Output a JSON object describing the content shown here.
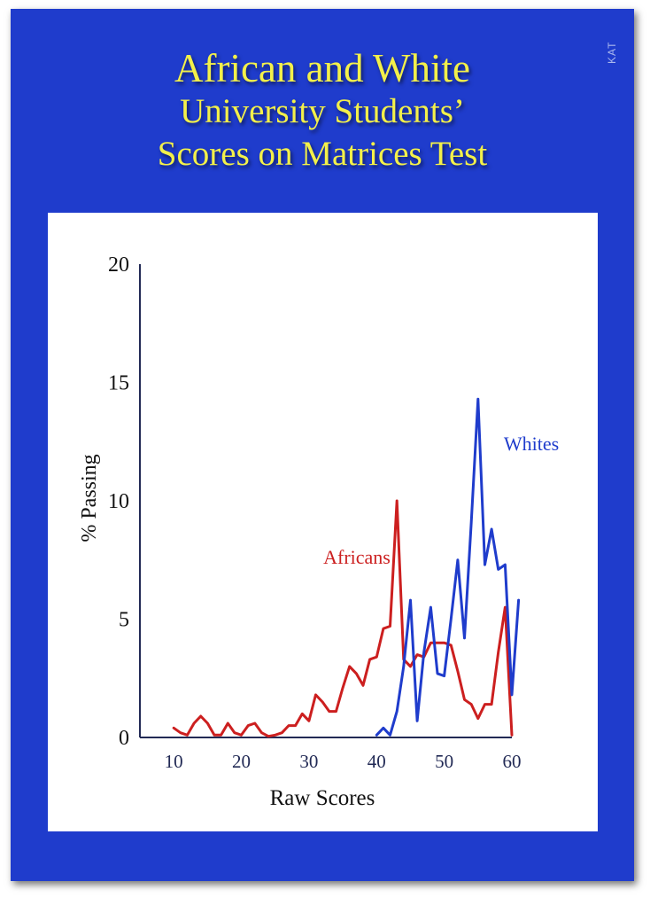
{
  "title": {
    "line1": "African and White",
    "line2": "University Students’",
    "line3": "Scores on Matrices Test"
  },
  "watermark": "KAT",
  "colors": {
    "background": "#1f3ccc",
    "title": "#f3f04a",
    "africans": "#cc1f1f",
    "whites": "#1f3ccc",
    "axis": "#222a55"
  },
  "chart_data": {
    "type": "line",
    "xlabel": "Raw Scores",
    "ylabel": "% Passing",
    "xlim": [
      5,
      60
    ],
    "ylim": [
      0,
      20
    ],
    "xticks": [
      10,
      20,
      30,
      40,
      50,
      60
    ],
    "yticks": [
      0,
      5,
      10,
      15,
      20
    ],
    "grid": false,
    "series": [
      {
        "name": "Africans",
        "color": "#cc1f1f",
        "x": [
          10,
          11,
          12,
          13,
          14,
          15,
          16,
          17,
          18,
          19,
          20,
          21,
          22,
          23,
          24,
          25,
          26,
          27,
          28,
          29,
          30,
          31,
          32,
          33,
          34,
          35,
          36,
          37,
          38,
          39,
          40,
          41,
          42,
          43,
          44,
          45,
          46,
          47,
          48,
          49,
          50,
          51,
          52,
          53,
          54,
          55,
          56,
          57,
          58,
          59,
          60
        ],
        "y": [
          0.4,
          0.2,
          0.1,
          0.6,
          0.9,
          0.6,
          0.1,
          0.1,
          0.6,
          0.2,
          0.1,
          0.5,
          0.6,
          0.2,
          0.05,
          0.1,
          0.2,
          0.5,
          0.5,
          1.0,
          0.7,
          1.8,
          1.5,
          1.1,
          1.1,
          2.1,
          3.0,
          2.7,
          2.2,
          3.3,
          3.4,
          4.6,
          4.7,
          10.0,
          3.3,
          3.0,
          3.5,
          3.4,
          4.0,
          4.0,
          4.0,
          3.9,
          2.8,
          1.6,
          1.4,
          0.8,
          1.4,
          1.4,
          3.6,
          5.5,
          0.1
        ]
      },
      {
        "name": "Whites",
        "color": "#1f3ccc",
        "x": [
          40,
          41,
          42,
          43,
          44,
          45,
          46,
          47,
          48,
          49,
          50,
          51,
          52,
          53,
          54,
          55,
          56,
          57,
          58,
          59,
          60,
          61
        ],
        "y": [
          0.1,
          0.4,
          0.1,
          1.1,
          3.0,
          5.8,
          0.7,
          3.6,
          5.5,
          2.7,
          2.6,
          5.0,
          7.5,
          4.2,
          9.1,
          14.3,
          7.3,
          8.8,
          7.1,
          7.3,
          1.8,
          5.8
        ]
      }
    ]
  }
}
